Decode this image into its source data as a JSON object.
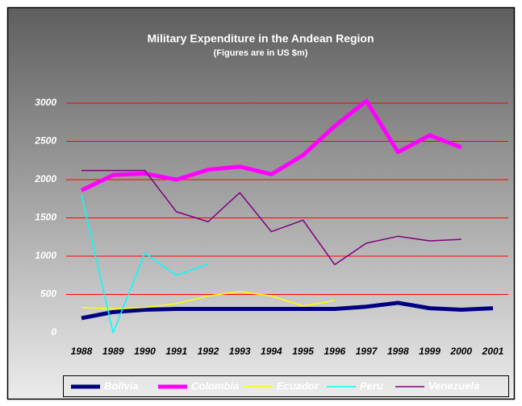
{
  "chart_data": {
    "type": "line",
    "title": "Military Expenditure in the Andean Region",
    "subtitle": "(Figures are in US $m)",
    "categories": [
      "1988",
      "1989",
      "1990",
      "1991",
      "1992",
      "1993",
      "1994",
      "1995",
      "1996",
      "1997",
      "1998",
      "1999",
      "2000",
      "2001"
    ],
    "series": [
      {
        "name": "Bolivia",
        "color": "#000080",
        "line_width": 5,
        "values": [
          190,
          270,
          300,
          310,
          310,
          310,
          310,
          310,
          310,
          340,
          390,
          320,
          300,
          320
        ]
      },
      {
        "name": "Colombia",
        "color": "#ff00ff",
        "line_width": 5,
        "values": [
          1860,
          2060,
          2080,
          2000,
          2130,
          2170,
          2070,
          2320,
          2700,
          3030,
          2360,
          2580,
          2420,
          null
        ]
      },
      {
        "name": "Ecuador",
        "color": "#ffff00",
        "line_width": 1.5,
        "values": [
          330,
          310,
          330,
          380,
          480,
          540,
          480,
          350,
          420,
          null,
          null,
          null,
          null,
          null
        ]
      },
      {
        "name": "Peru",
        "color": "#00ffff",
        "line_width": 1.5,
        "values": [
          1800,
          0,
          1040,
          750,
          900,
          null,
          null,
          null,
          null,
          null,
          null,
          null,
          null,
          null
        ]
      },
      {
        "name": "Venezuela",
        "color": "#800080",
        "line_width": 1.5,
        "values": [
          2120,
          2120,
          2120,
          1580,
          1450,
          1830,
          1320,
          1470,
          890,
          1170,
          1260,
          1200,
          1220,
          null
        ]
      }
    ],
    "ylim": [
      0,
      3000
    ],
    "yticks": [
      0,
      500,
      1000,
      1500,
      2000,
      2500,
      3000
    ],
    "grid": true,
    "grid_color": "#ff0000",
    "legend": "bottom"
  }
}
